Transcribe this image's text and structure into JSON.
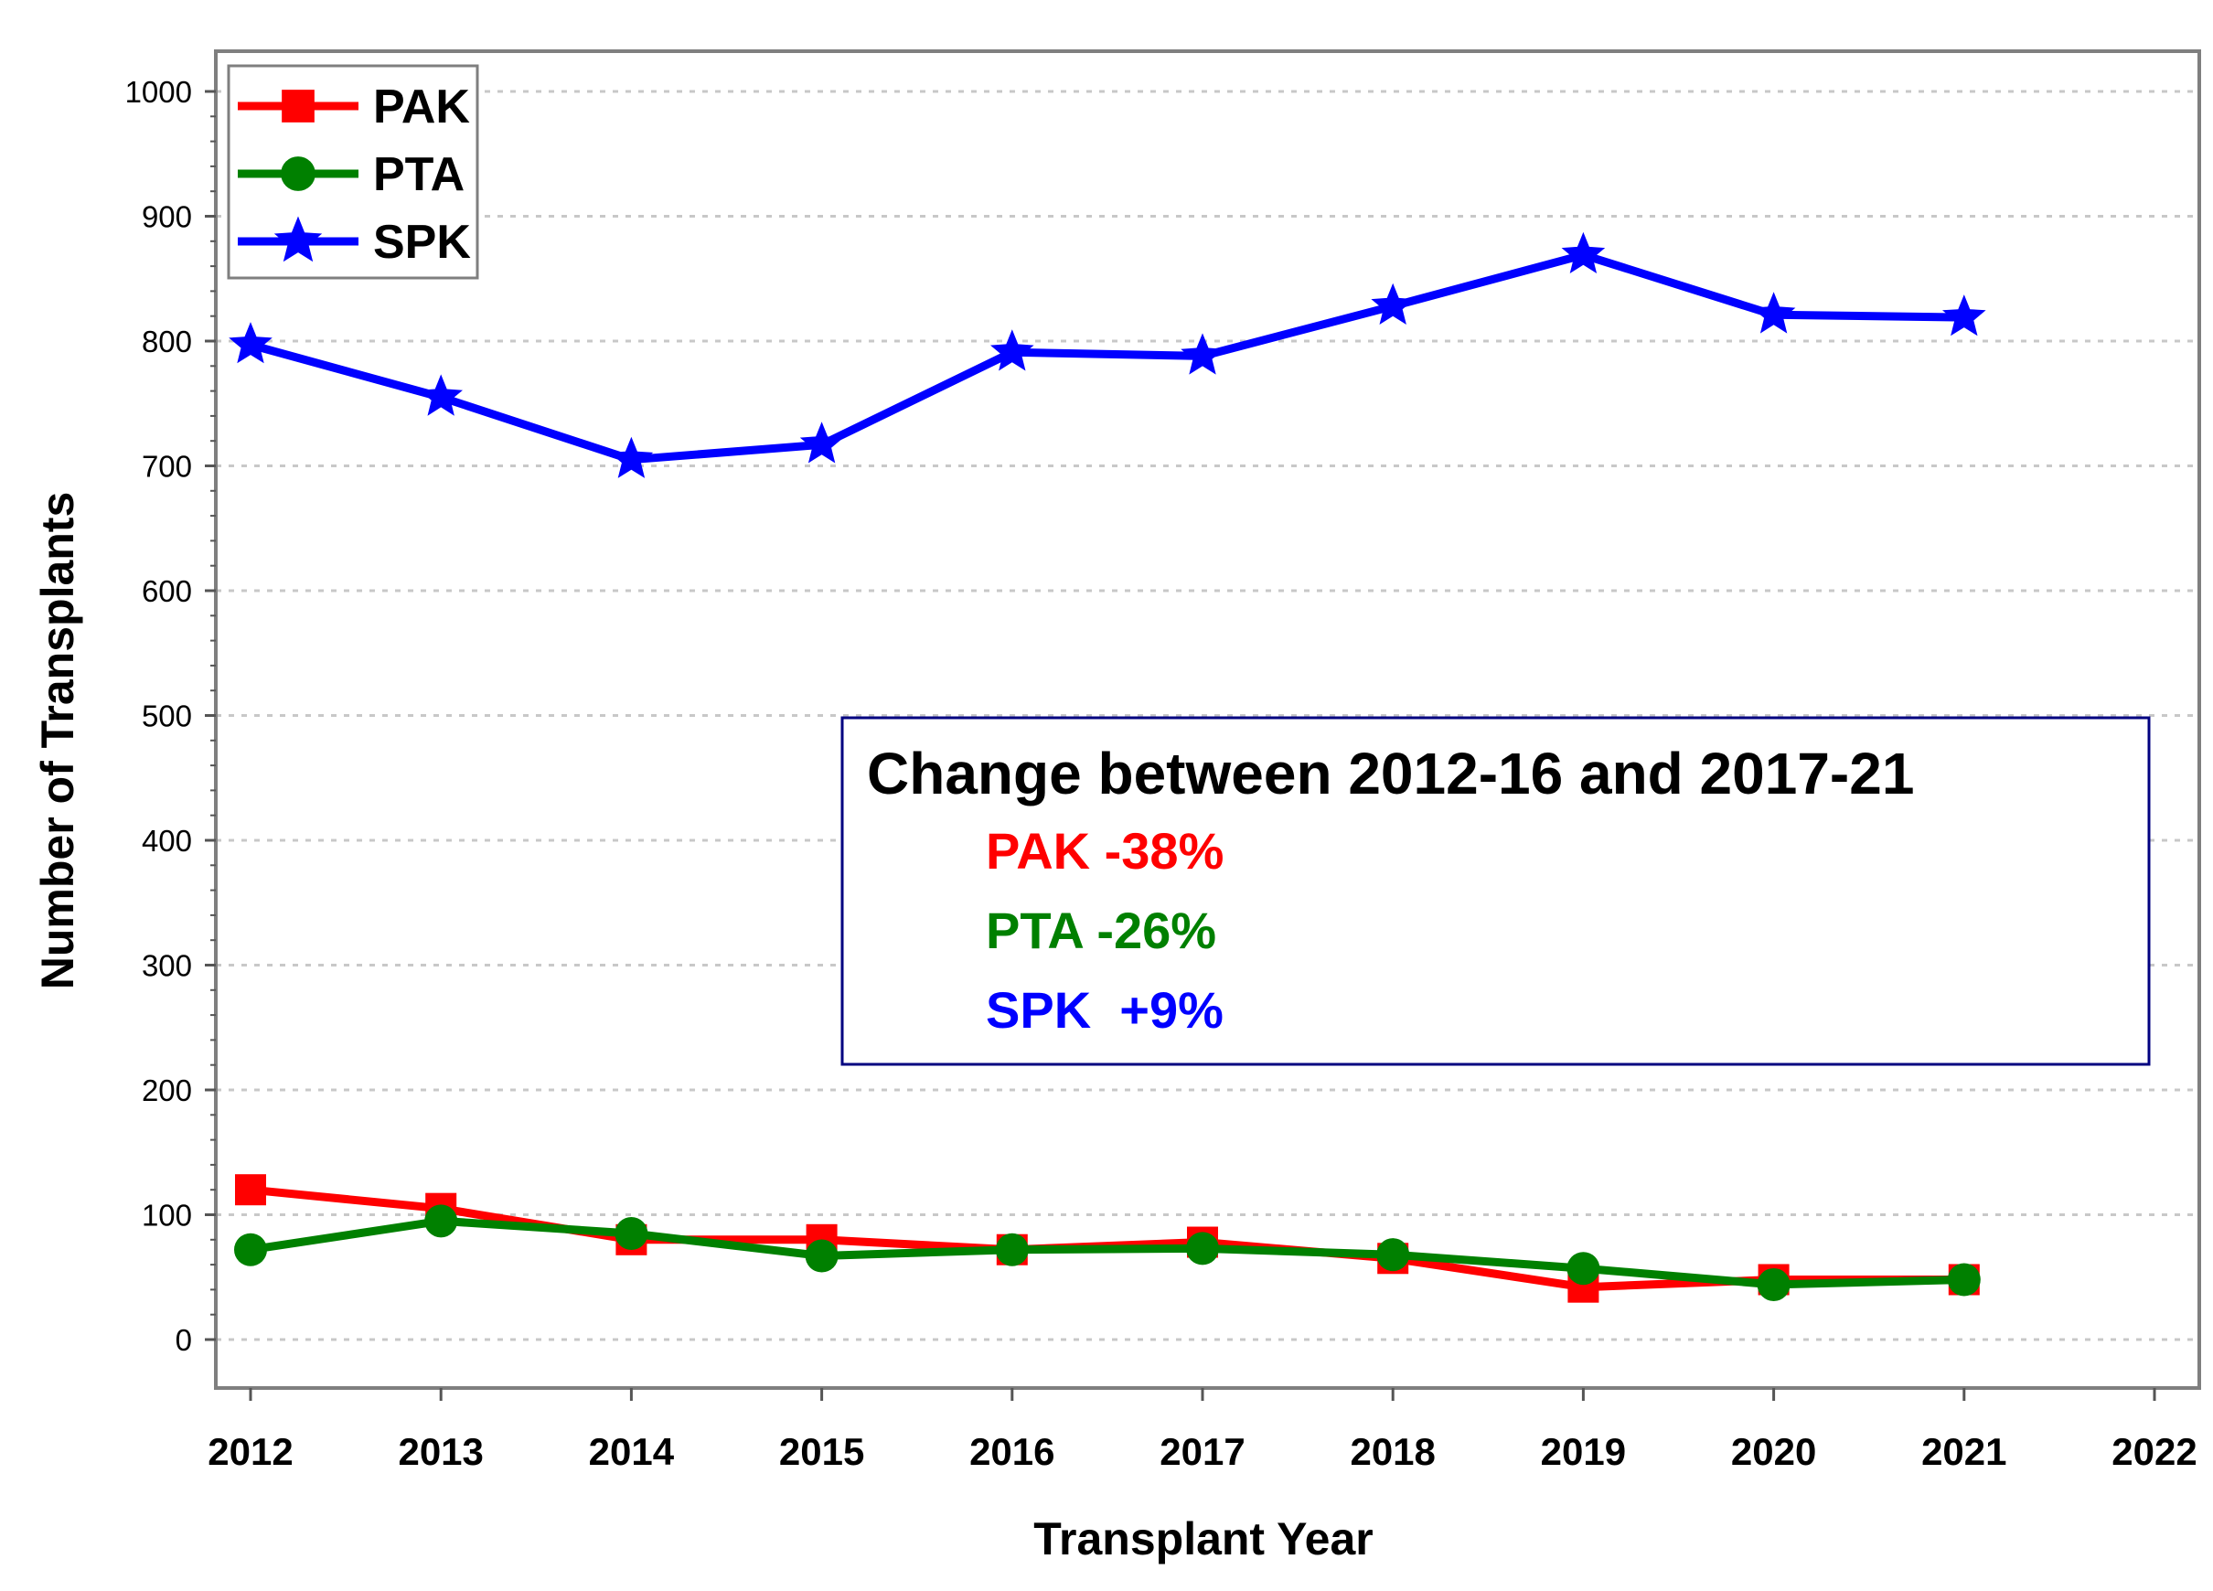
{
  "chart_data": {
    "type": "line",
    "title": "",
    "xlabel": "Transplant Year",
    "ylabel": "Number of Transplants",
    "x_ticks": [
      "2012",
      "2013",
      "2014",
      "2015",
      "2016",
      "2017",
      "2018",
      "2019",
      "2020",
      "2021",
      "2022"
    ],
    "y_ticks": [
      "0",
      "100",
      "200",
      "300",
      "400",
      "500",
      "600",
      "700",
      "800",
      "900",
      "1000"
    ],
    "xlim": [
      2012,
      2022
    ],
    "ylim": [
      0,
      1000
    ],
    "grid": "horizontal dashed",
    "legend_position": "top-left",
    "x": [
      2012,
      2013,
      2014,
      2015,
      2016,
      2017,
      2018,
      2019,
      2020,
      2021
    ],
    "series": [
      {
        "name": "PAK",
        "color": "#ff0000",
        "marker": "square",
        "values": [
          120,
          105,
          80,
          80,
          72,
          78,
          65,
          42,
          48,
          48
        ]
      },
      {
        "name": "PTA",
        "color": "#008000",
        "marker": "circle",
        "values": [
          72,
          95,
          85,
          67,
          72,
          73,
          68,
          57,
          44,
          48
        ]
      },
      {
        "name": "SPK",
        "color": "#0000ff",
        "marker": "star",
        "values": [
          797,
          755,
          705,
          717,
          791,
          788,
          828,
          869,
          821,
          819
        ]
      }
    ],
    "annotation": {
      "title": "Change between 2012-16 and 2017-21",
      "lines": [
        {
          "text": "PAK -38%",
          "color": "#ff0000"
        },
        {
          "text": "PTA -26%",
          "color": "#008000"
        },
        {
          "text": "SPK  +9%",
          "color": "#0000ff"
        }
      ]
    }
  }
}
